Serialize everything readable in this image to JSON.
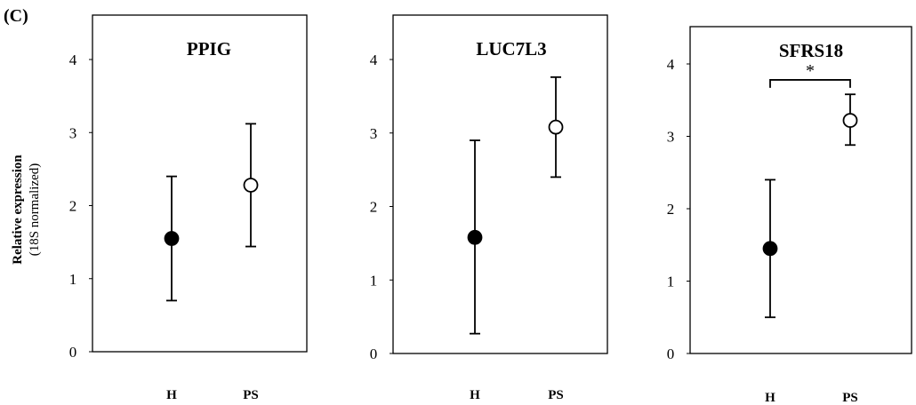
{
  "figure": {
    "panel_label": "(C)",
    "ylabel_line1": "Relative expression",
    "ylabel_line2": "(18S normalized)"
  },
  "chart_data": [
    {
      "type": "scatter",
      "title": "PPIG",
      "categories": [
        "H",
        "PS"
      ],
      "ylim": [
        0,
        4
      ],
      "yticks": [
        0,
        1,
        2,
        3,
        4
      ],
      "points": [
        {
          "category": "H",
          "mean": 1.55,
          "lower": 0.7,
          "upper": 2.4,
          "fill": "#000000"
        },
        {
          "category": "PS",
          "mean": 2.28,
          "lower": 1.44,
          "upper": 3.12,
          "fill": "#ffffff"
        }
      ],
      "significance": null
    },
    {
      "type": "scatter",
      "title": "LUC7L3",
      "categories": [
        "H",
        "PS"
      ],
      "ylim": [
        0,
        4
      ],
      "yticks": [
        0,
        1,
        2,
        3,
        4
      ],
      "points": [
        {
          "category": "H",
          "mean": 1.58,
          "lower": 0.27,
          "upper": 2.9,
          "fill": "#000000"
        },
        {
          "category": "PS",
          "mean": 3.08,
          "lower": 2.4,
          "upper": 3.76,
          "fill": "#ffffff"
        }
      ],
      "significance": null
    },
    {
      "type": "scatter",
      "title": "SFRS18",
      "categories": [
        "H",
        "PS"
      ],
      "ylim": [
        0,
        4
      ],
      "yticks": [
        0,
        1,
        2,
        3,
        4
      ],
      "points": [
        {
          "category": "H",
          "mean": 1.45,
          "lower": 0.5,
          "upper": 2.4,
          "fill": "#000000"
        },
        {
          "category": "PS",
          "mean": 3.22,
          "lower": 2.88,
          "upper": 3.58,
          "fill": "#ffffff"
        }
      ],
      "significance": {
        "label": "*",
        "from": "H",
        "to": "PS",
        "level": 3.78
      }
    }
  ]
}
